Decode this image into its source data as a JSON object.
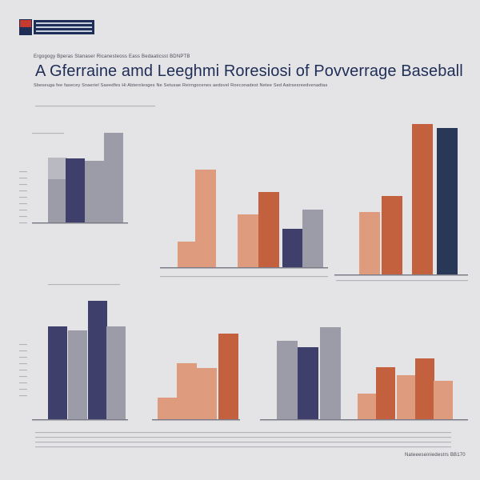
{
  "header": {
    "kicker": "Ergogogy Bperas Stanaser Ricanesteoss Eass Bedaaticsst BDNPTB",
    "title": "A Gferraine amd Leeghmi Roresiosi of Povverrage Baseball",
    "subtitle": "Sbeseuga fee fasecey Snaeriel Saeedfes Hi Abterolesges Ne Setusae Reirngocenes aedsvel Roeconadest Netee Sed Aatrsesreedvenadtas"
  },
  "footer": {
    "source": "Nateeeseiniedestrs BB170"
  },
  "colors": {
    "navy": "#3f3f6b",
    "gray": "#9b9ca8",
    "salmon": "#df9b7d",
    "rust": "#c3613e",
    "dark_navy": "#283856",
    "background": "#e4e4e6"
  },
  "chart_data": [
    {
      "type": "bar",
      "panel": "top-left",
      "series": [
        {
          "color": "gray",
          "values": [
            54,
            27,
            0
          ]
        },
        {
          "color": "navy",
          "values": [
            80,
            0,
            0
          ]
        },
        {
          "color": "gray",
          "values": [
            77,
            0,
            0
          ]
        },
        {
          "color": "gray",
          "values": [
            112,
            0,
            0
          ]
        }
      ]
    },
    {
      "type": "bar",
      "panel": "top-middle",
      "bars": [
        {
          "color": "salmon",
          "value": 32
        },
        {
          "color": "salmon",
          "value": 122
        },
        {
          "color": "salmon",
          "value": 66
        },
        {
          "color": "rust",
          "value": 94
        },
        {
          "color": "navy",
          "value": 48
        },
        {
          "color": "gray",
          "value": 72
        }
      ]
    },
    {
      "type": "bar",
      "panel": "top-right",
      "bars": [
        {
          "color": "salmon",
          "value": 78
        },
        {
          "color": "rust",
          "value": 98
        },
        {
          "color": "rust",
          "value": 188
        },
        {
          "color": "dark_navy",
          "value": 183
        }
      ]
    },
    {
      "type": "bar",
      "panel": "bottom-left",
      "bars": [
        {
          "color": "navy",
          "value": 116
        },
        {
          "color": "gray",
          "value": 111
        },
        {
          "color": "navy",
          "value": 148
        },
        {
          "color": "gray",
          "value": 116
        }
      ]
    },
    {
      "type": "bar",
      "panel": "bottom-middle",
      "bars": [
        {
          "color": "salmon",
          "value": 27
        },
        {
          "color": "salmon",
          "value": 70
        },
        {
          "color": "salmon",
          "value": 64
        },
        {
          "color": "rust",
          "value": 107
        }
      ]
    },
    {
      "type": "bar",
      "panel": "bottom-middle-right",
      "bars": [
        {
          "color": "gray",
          "value": 98
        },
        {
          "color": "navy",
          "value": 90
        },
        {
          "color": "gray",
          "value": 115
        }
      ]
    },
    {
      "type": "bar",
      "panel": "bottom-right",
      "bars": [
        {
          "color": "salmon",
          "value": 32
        },
        {
          "color": "rust",
          "value": 65
        },
        {
          "color": "salmon",
          "value": 55
        },
        {
          "color": "rust",
          "value": 76
        },
        {
          "color": "salmon",
          "value": 48
        }
      ]
    }
  ]
}
